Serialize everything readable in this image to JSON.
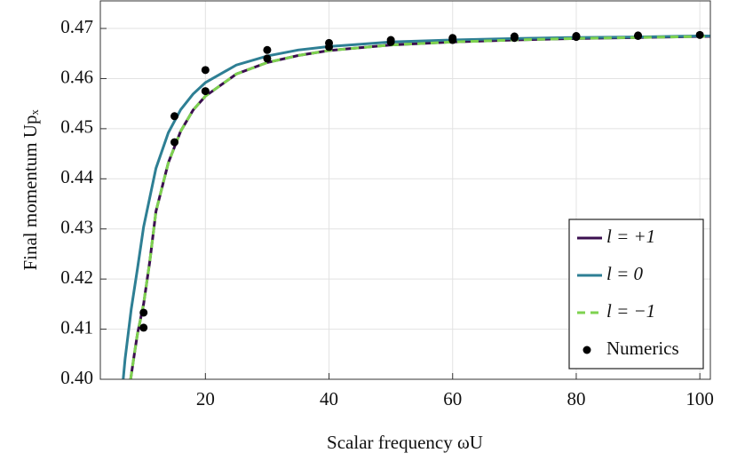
{
  "chart_data": {
    "type": "line",
    "xlabel": "Scalar frequency ωU",
    "ylabel": "Final momentum Upₓ",
    "xlim": [
      3,
      101.7
    ],
    "ylim": [
      0.4,
      0.4755
    ],
    "xticks": [
      20,
      40,
      60,
      80,
      100
    ],
    "yticks": [
      {
        "value": 0.4,
        "label": "0.40"
      },
      0.41,
      0.42,
      0.43,
      0.44,
      0.45,
      0.46,
      0.47
    ],
    "grid": true,
    "legend": "lower right",
    "series": [
      {
        "name": "l = +1",
        "color": "#3b0f4f",
        "linestyle": "solid",
        "x": [
          7.9,
          8.5,
          9,
          10,
          11,
          12,
          14,
          16,
          18,
          20,
          25,
          30,
          35,
          40,
          50,
          60,
          70,
          80,
          90,
          100,
          101.7
        ],
        "values": [
          0.4,
          0.405,
          0.409,
          0.415,
          0.4235,
          0.4335,
          0.4432,
          0.4495,
          0.4537,
          0.4565,
          0.4609,
          0.4632,
          0.4646,
          0.4656,
          0.4667,
          0.4673,
          0.4677,
          0.468,
          0.4682,
          0.4684,
          0.4684
        ]
      },
      {
        "name": "l = 0",
        "color": "#2e7f94",
        "linestyle": "solid",
        "x": [
          6.7,
          7,
          8,
          9,
          10,
          12,
          14,
          16,
          18,
          20,
          25,
          30,
          35,
          40,
          50,
          60,
          70,
          80,
          90,
          100,
          101.7
        ],
        "values": [
          0.4,
          0.404,
          0.414,
          0.422,
          0.4304,
          0.4421,
          0.4492,
          0.4538,
          0.4569,
          0.4592,
          0.4627,
          0.4645,
          0.4657,
          0.4664,
          0.4673,
          0.4677,
          0.468,
          0.4682,
          0.4683,
          0.4685,
          0.4685
        ]
      },
      {
        "name": "l = −1",
        "color": "#7ed24f",
        "linestyle": "dashed",
        "x": [
          7.9,
          8.5,
          9,
          10,
          11,
          12,
          14,
          16,
          18,
          20,
          25,
          30,
          35,
          40,
          50,
          60,
          70,
          80,
          90,
          100,
          101.7
        ],
        "values": [
          0.4,
          0.405,
          0.409,
          0.415,
          0.4235,
          0.4335,
          0.4432,
          0.4495,
          0.4537,
          0.4565,
          0.4609,
          0.4632,
          0.4646,
          0.4656,
          0.4667,
          0.4673,
          0.4677,
          0.468,
          0.4682,
          0.4684,
          0.4684
        ]
      },
      {
        "name": "Numerics",
        "color": "#000000",
        "type": "scatter",
        "x": [
          10,
          10,
          15,
          15,
          20,
          20,
          30,
          30,
          40,
          40,
          50,
          50,
          60,
          60,
          70,
          70,
          80,
          80,
          90,
          90,
          100
        ],
        "values": [
          0.4133,
          0.4103,
          0.4525,
          0.4473,
          0.4617,
          0.4575,
          0.4657,
          0.464,
          0.4671,
          0.4663,
          0.4677,
          0.4673,
          0.4681,
          0.4677,
          0.4684,
          0.4681,
          0.4685,
          0.4683,
          0.4686,
          0.4685,
          0.4687
        ]
      }
    ]
  }
}
